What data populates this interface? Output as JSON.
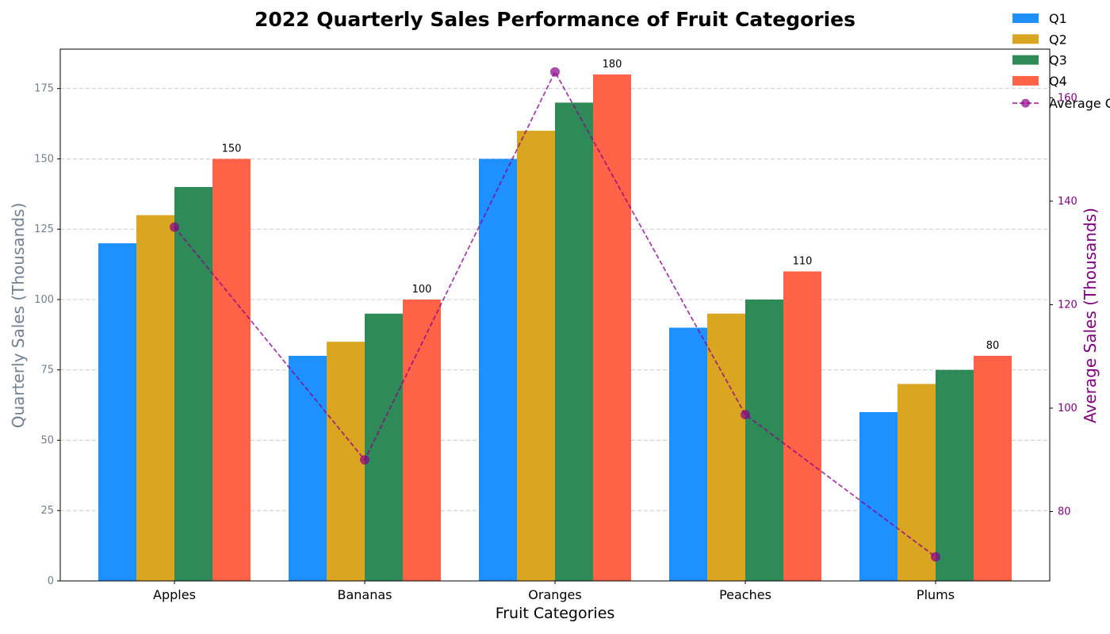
{
  "chart_data": {
    "type": "bar",
    "title": "2022 Quarterly Sales Performance of Fruit Categories",
    "xlabel": "Fruit Categories",
    "ylabel": "Quarterly Sales (Thousands)",
    "y2label": "Average Sales (Thousands)",
    "categories": [
      "Apples",
      "Bananas",
      "Oranges",
      "Peaches",
      "Plums"
    ],
    "series": [
      {
        "name": "Q1",
        "color": "#1E90FF",
        "values": [
          120,
          80,
          150,
          90,
          60
        ]
      },
      {
        "name": "Q2",
        "color": "#DAA520",
        "values": [
          130,
          85,
          160,
          95,
          70
        ]
      },
      {
        "name": "Q3",
        "color": "#2E8B57",
        "values": [
          140,
          95,
          170,
          100,
          75
        ]
      },
      {
        "name": "Q4",
        "color": "#FF6347",
        "values": [
          150,
          100,
          180,
          110,
          80
        ]
      }
    ],
    "line_series": {
      "name": "Average Q",
      "color": "#8B008B",
      "axis": "right",
      "values": [
        135,
        90,
        165,
        98.75,
        71.25
      ]
    },
    "data_labels": {
      "series": "Q4",
      "values": [
        "150",
        "100",
        "180",
        "110",
        "80"
      ]
    },
    "ylim": [
      0,
      189
    ],
    "y2lim": [
      66.6,
      169.4
    ],
    "yticks": [
      "0",
      "25",
      "50",
      "75",
      "100",
      "125",
      "150",
      "175"
    ],
    "y2ticks": [
      "80",
      "100",
      "120",
      "140",
      "160"
    ],
    "grid": true,
    "legend_position": "top-right"
  }
}
